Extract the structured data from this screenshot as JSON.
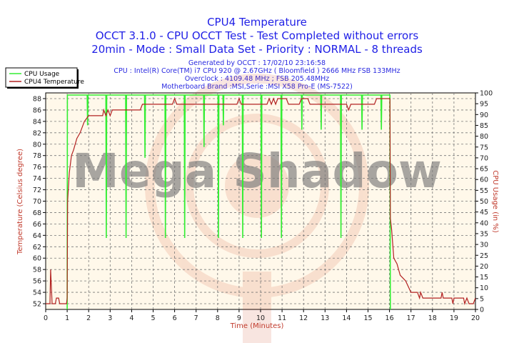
{
  "header": {
    "title": "CPU4 Temperature",
    "subtitle1": "OCCT 3.1.0 - CPU OCCT Test - Test Completed without errors",
    "subtitle2": "20min - Mode : Small Data Set - Priority : NORMAL - 8 threads",
    "info": [
      "Generated by OCCT : 17/02/10 23:16:58",
      "CPU : Intel(R) Core(TM) i7 CPU 920 @ 2.67GHz ( Bloomfield ) 2666 MHz FSB 133MHz",
      "Overclock : 4109.48 MHz ; FSB 205.48MHz",
      "Motherboard Brand :MSI,Serie :MSI X58 Pro-E (MS-7522)"
    ]
  },
  "watermark": "Mega Shadow",
  "colors": {
    "cpu_usage": "#33ee33",
    "temperature": "#b22222",
    "plot_bg": "#fff8ea",
    "title": "#1f1fe6"
  },
  "chart_data": {
    "type": "line",
    "xlabel": "Time (Minutes)",
    "ylabel_left": "Temperature (Celsius degree)",
    "ylabel_right": "CPU Usage (in %)",
    "xlim": [
      0,
      20
    ],
    "ylim_left": [
      51,
      89
    ],
    "ylim_right": [
      0,
      100
    ],
    "x_ticks": [
      0,
      1,
      2,
      3,
      4,
      5,
      6,
      7,
      8,
      9,
      10,
      11,
      12,
      13,
      14,
      15,
      16,
      17,
      18,
      19,
      20
    ],
    "y_ticks_left": [
      52,
      54,
      56,
      58,
      60,
      62,
      64,
      66,
      68,
      70,
      72,
      74,
      76,
      78,
      80,
      82,
      84,
      86,
      88
    ],
    "y_ticks_right": [
      0,
      5,
      10,
      15,
      20,
      25,
      30,
      35,
      40,
      45,
      50,
      55,
      60,
      65,
      70,
      75,
      80,
      85,
      90,
      95,
      100
    ],
    "grid": true,
    "legend_placement": "top-left",
    "series": [
      {
        "name": "CPU Usage",
        "axis": "right",
        "points": [
          [
            1.0,
            0
          ],
          [
            1.01,
            99
          ],
          [
            1.93,
            99
          ],
          [
            1.95,
            85
          ],
          [
            1.97,
            99
          ],
          [
            2.8,
            99
          ],
          [
            2.82,
            33
          ],
          [
            2.84,
            99
          ],
          [
            3.72,
            99
          ],
          [
            3.74,
            33
          ],
          [
            3.76,
            99
          ],
          [
            4.6,
            99
          ],
          [
            4.62,
            70
          ],
          [
            4.64,
            99
          ],
          [
            5.55,
            99
          ],
          [
            5.57,
            33
          ],
          [
            5.59,
            99
          ],
          [
            6.45,
            99
          ],
          [
            6.47,
            33
          ],
          [
            6.49,
            99
          ],
          [
            7.35,
            99
          ],
          [
            7.37,
            75
          ],
          [
            7.39,
            99
          ],
          [
            8.02,
            99
          ],
          [
            8.04,
            33
          ],
          [
            8.06,
            99
          ],
          [
            8.25,
            99
          ],
          [
            8.27,
            85
          ],
          [
            8.29,
            99
          ],
          [
            9.15,
            99
          ],
          [
            9.17,
            33
          ],
          [
            9.19,
            99
          ],
          [
            10.02,
            99
          ],
          [
            10.04,
            33
          ],
          [
            10.06,
            99
          ],
          [
            10.95,
            99
          ],
          [
            10.97,
            33
          ],
          [
            10.99,
            99
          ],
          [
            11.9,
            99
          ],
          [
            11.92,
            83
          ],
          [
            11.94,
            99
          ],
          [
            12.8,
            99
          ],
          [
            12.82,
            83
          ],
          [
            12.84,
            99
          ],
          [
            13.72,
            99
          ],
          [
            13.74,
            33
          ],
          [
            13.76,
            99
          ],
          [
            14.7,
            99
          ],
          [
            14.72,
            83
          ],
          [
            14.74,
            99
          ],
          [
            15.6,
            99
          ],
          [
            15.62,
            83
          ],
          [
            15.64,
            99
          ],
          [
            16.02,
            99
          ],
          [
            16.04,
            0
          ]
        ]
      },
      {
        "name": "CPU4 Temperature",
        "axis": "left",
        "points": [
          [
            0,
            52
          ],
          [
            0.2,
            52
          ],
          [
            0.23,
            58
          ],
          [
            0.3,
            52
          ],
          [
            0.45,
            52
          ],
          [
            0.5,
            53
          ],
          [
            0.6,
            53
          ],
          [
            0.65,
            52
          ],
          [
            0.97,
            52
          ],
          [
            1.0,
            53
          ],
          [
            1.02,
            70
          ],
          [
            1.1,
            75
          ],
          [
            1.2,
            78
          ],
          [
            1.3,
            79
          ],
          [
            1.45,
            81
          ],
          [
            1.6,
            82
          ],
          [
            1.8,
            84
          ],
          [
            2.0,
            85
          ],
          [
            2.65,
            85
          ],
          [
            2.7,
            86
          ],
          [
            2.8,
            85
          ],
          [
            2.9,
            86
          ],
          [
            3.0,
            85
          ],
          [
            3.1,
            86
          ],
          [
            4.4,
            86
          ],
          [
            4.5,
            87
          ],
          [
            5.9,
            87
          ],
          [
            6.0,
            88
          ],
          [
            6.1,
            87
          ],
          [
            8.9,
            87
          ],
          [
            9.0,
            88
          ],
          [
            9.1,
            87
          ],
          [
            10.3,
            87
          ],
          [
            10.4,
            88
          ],
          [
            10.5,
            87
          ],
          [
            10.6,
            88
          ],
          [
            10.7,
            87
          ],
          [
            10.8,
            88
          ],
          [
            11.2,
            88
          ],
          [
            11.3,
            87
          ],
          [
            11.8,
            87
          ],
          [
            11.9,
            88
          ],
          [
            12.2,
            88
          ],
          [
            12.3,
            87
          ],
          [
            14.0,
            87
          ],
          [
            14.1,
            86
          ],
          [
            14.2,
            87
          ],
          [
            15.3,
            87
          ],
          [
            15.4,
            88
          ],
          [
            16.02,
            88
          ],
          [
            16.04,
            67
          ],
          [
            16.1,
            65
          ],
          [
            16.2,
            60
          ],
          [
            16.35,
            59
          ],
          [
            16.5,
            57
          ],
          [
            16.75,
            56
          ],
          [
            17.0,
            54
          ],
          [
            17.3,
            54
          ],
          [
            17.4,
            53
          ],
          [
            17.45,
            54
          ],
          [
            17.55,
            53
          ],
          [
            18.4,
            53
          ],
          [
            18.45,
            54
          ],
          [
            18.5,
            53
          ],
          [
            18.9,
            53
          ],
          [
            18.95,
            52
          ],
          [
            19.0,
            53
          ],
          [
            19.45,
            53
          ],
          [
            19.5,
            52
          ],
          [
            19.6,
            53
          ],
          [
            19.7,
            52
          ],
          [
            19.9,
            52
          ],
          [
            20,
            53
          ]
        ]
      }
    ]
  }
}
